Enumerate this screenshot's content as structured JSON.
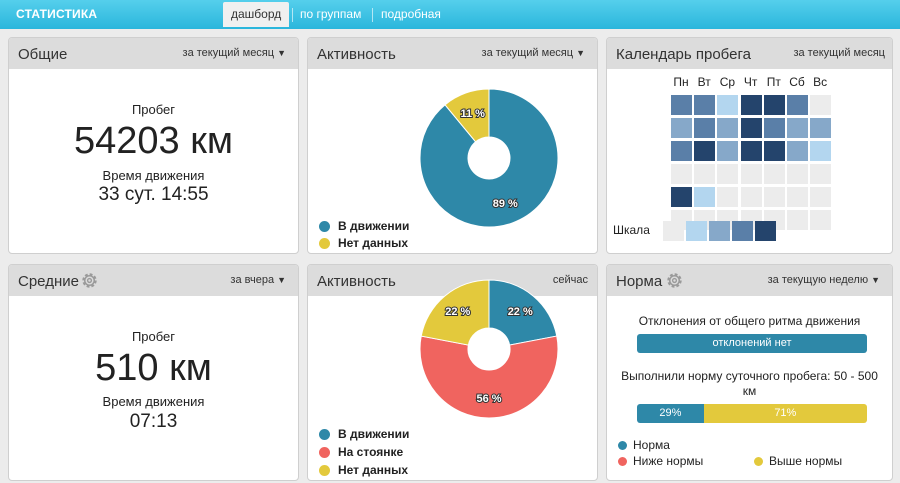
{
  "app": {
    "brand": "СТАТИСТИКА",
    "tabs": [
      {
        "label": "дашборд",
        "active": true
      },
      {
        "label": "по группам",
        "active": false
      },
      {
        "label": "подробная",
        "active": false
      }
    ]
  },
  "colors": {
    "moving": "#2e88a8",
    "parked": "#f0645f",
    "nodata": "#e3c93c",
    "header_bg": "#dcdcdc",
    "accent": "#2ab6dc"
  },
  "general": {
    "title": "Общие",
    "filter": "за текущий месяц",
    "mileage_label": "Пробег",
    "mileage_value": "54203 км",
    "time_label": "Время движения",
    "time_value": "33 сут. 14:55"
  },
  "activity_month": {
    "title": "Активность",
    "filter": "за текущий месяц",
    "legend": [
      "В движении",
      "Нет данных"
    ],
    "chart_data": {
      "type": "pie",
      "labels": [
        "В движении",
        "Нет данных"
      ],
      "values": [
        89,
        11
      ],
      "slice_labels": [
        "89 %",
        "11 %"
      ],
      "colors": [
        "#2e88a8",
        "#e3c93c"
      ]
    }
  },
  "calendar": {
    "title": "Календарь пробега",
    "filter": "за текущий месяц",
    "days": [
      "Пн",
      "Вт",
      "Ср",
      "Чт",
      "Пт",
      "Сб",
      "Вс"
    ],
    "scale_label": "Шкала",
    "scale_colors": [
      "#ececec",
      "#b3d6ef",
      "#86a8c9",
      "#5a7fa8",
      "#24446c"
    ],
    "grid_levels": [
      [
        3,
        3,
        1,
        4,
        4,
        3,
        0
      ],
      [
        2,
        3,
        2,
        4,
        3,
        2,
        2
      ],
      [
        3,
        4,
        2,
        4,
        4,
        2,
        1
      ],
      [
        0,
        0,
        0,
        0,
        0,
        0,
        0
      ],
      [
        4,
        1,
        0,
        0,
        0,
        0,
        0
      ],
      [
        0,
        0,
        0,
        0,
        0,
        0,
        0
      ]
    ]
  },
  "averages": {
    "title": "Средние",
    "filter": "за вчера",
    "mileage_label": "Пробег",
    "mileage_value": "510 км",
    "time_label": "Время движения",
    "time_value": "07:13"
  },
  "activity_now": {
    "title": "Активность",
    "filter": "сейчас",
    "legend": [
      "В движении",
      "На стоянке",
      "Нет данных"
    ],
    "chart_data": {
      "type": "pie",
      "labels": [
        "В движении",
        "На стоянке",
        "Нет данных"
      ],
      "values": [
        22,
        56,
        22
      ],
      "slice_labels": [
        "22 %",
        "56 %",
        "22 %"
      ],
      "colors": [
        "#2e88a8",
        "#f0645f",
        "#e3c93c"
      ]
    }
  },
  "norm": {
    "title": "Норма",
    "filter": "за текущую неделю",
    "deviation_title": "Отклонения от общего ритма движения",
    "deviation_value": "отклонений нет",
    "norm_title": "Выполнили норму суточного пробега: 50 - 500 км",
    "norm_split": [
      29,
      71
    ],
    "norm_split_labels": [
      "29%",
      "71%"
    ],
    "legend": [
      "Норма",
      "Ниже нормы",
      "Выше нормы"
    ]
  }
}
